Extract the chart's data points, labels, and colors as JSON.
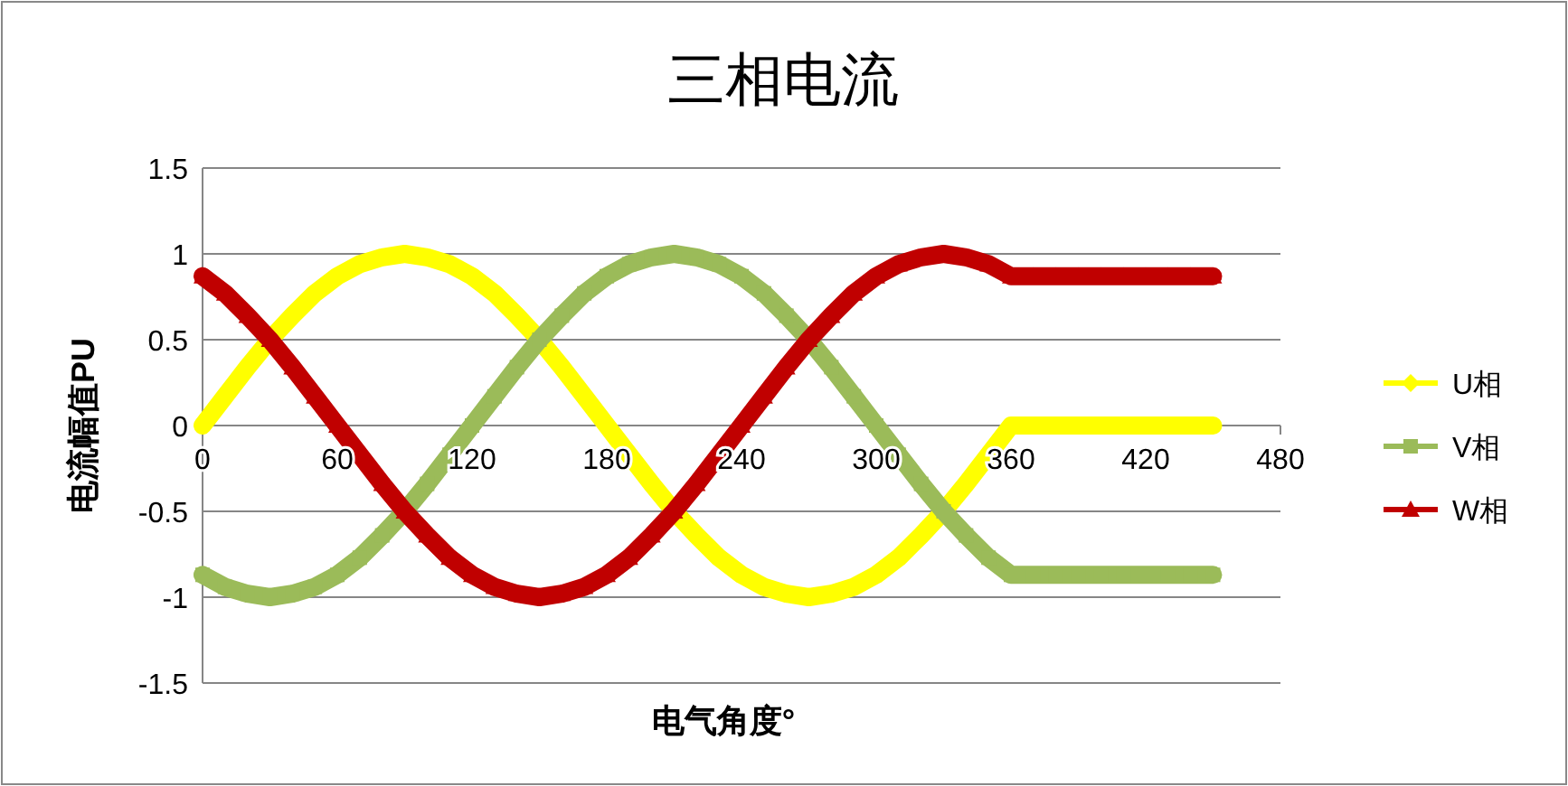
{
  "chart_data": {
    "type": "line",
    "title": "三相电流",
    "xlabel": "电气角度°",
    "ylabel": "电流幅值PU",
    "x": [
      0,
      10,
      20,
      30,
      40,
      50,
      60,
      70,
      80,
      90,
      100,
      110,
      120,
      130,
      140,
      150,
      160,
      170,
      180,
      190,
      200,
      210,
      220,
      230,
      240,
      250,
      260,
      270,
      280,
      290,
      300,
      310,
      320,
      330,
      340,
      350,
      360,
      370,
      380,
      390,
      400,
      410,
      420,
      430,
      440,
      450
    ],
    "series": [
      {
        "name": "U相",
        "color": "#ffff00",
        "marker": "diamond",
        "values": [
          0,
          0.17,
          0.34,
          0.5,
          0.64,
          0.77,
          0.87,
          0.94,
          0.98,
          1,
          0.98,
          0.94,
          0.87,
          0.77,
          0.64,
          0.5,
          0.34,
          0.17,
          0,
          -0.17,
          -0.34,
          -0.5,
          -0.64,
          -0.77,
          -0.87,
          -0.94,
          -0.98,
          -1,
          -0.98,
          -0.94,
          -0.87,
          -0.77,
          -0.64,
          -0.5,
          -0.34,
          -0.17,
          0,
          0,
          0,
          0,
          0,
          0,
          0,
          0,
          0,
          0
        ]
      },
      {
        "name": "V相",
        "color": "#9bbb59",
        "marker": "square",
        "values": [
          -0.87,
          -0.94,
          -0.98,
          -1,
          -0.98,
          -0.94,
          -0.87,
          -0.77,
          -0.64,
          -0.5,
          -0.34,
          -0.17,
          0,
          0.17,
          0.34,
          0.5,
          0.64,
          0.77,
          0.87,
          0.94,
          0.98,
          1,
          0.98,
          0.94,
          0.87,
          0.77,
          0.64,
          0.5,
          0.34,
          0.17,
          0,
          -0.17,
          -0.34,
          -0.5,
          -0.64,
          -0.77,
          -0.87,
          -0.87,
          -0.87,
          -0.87,
          -0.87,
          -0.87,
          -0.87,
          -0.87,
          -0.87,
          -0.87
        ]
      },
      {
        "name": "W相",
        "color": "#c00000",
        "marker": "triangle",
        "values": [
          0.87,
          0.77,
          0.64,
          0.5,
          0.34,
          0.17,
          0,
          -0.17,
          -0.34,
          -0.5,
          -0.64,
          -0.77,
          -0.87,
          -0.94,
          -0.98,
          -1,
          -0.98,
          -0.94,
          -0.87,
          -0.77,
          -0.64,
          -0.5,
          -0.34,
          -0.17,
          0,
          0.17,
          0.34,
          0.5,
          0.64,
          0.77,
          0.87,
          0.94,
          0.98,
          1,
          0.98,
          0.94,
          0.87,
          0.87,
          0.87,
          0.87,
          0.87,
          0.87,
          0.87,
          0.87,
          0.87,
          0.87
        ]
      }
    ],
    "xlim": [
      0,
      480
    ],
    "ylim": [
      -1.5,
      1.5
    ],
    "xticks": [
      0,
      60,
      120,
      180,
      240,
      300,
      360,
      420,
      480
    ],
    "yticks": [
      -1.5,
      -1,
      -0.5,
      0,
      0.5,
      1,
      1.5
    ],
    "grid": "y",
    "legend": "right"
  }
}
